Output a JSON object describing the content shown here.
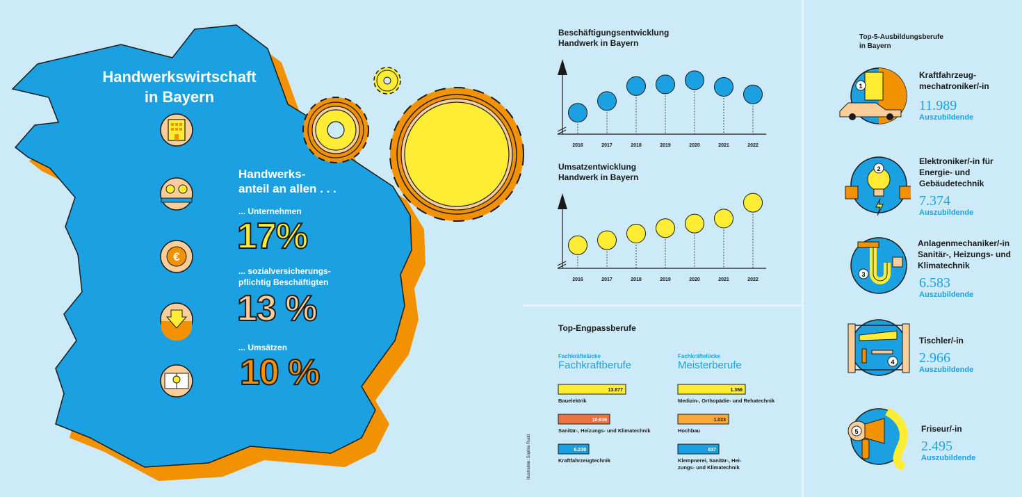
{
  "left": {
    "title_line1": "Handwerkswirtschaft",
    "title_line2": "in Bayern",
    "share_heading_line1": "Handwerks-",
    "share_heading_line2": "anteil an allen . . .",
    "shares": [
      {
        "label_line1": "... Unternehmen",
        "label_line2": "",
        "value": "17%",
        "color": "#ffed35"
      },
      {
        "label_line1": "... sozialversicherungs-",
        "label_line2": "pflichtig Beschäftigten",
        "value": "13 %",
        "color": "#fbcd99"
      },
      {
        "label_line1": "... Umsätzen",
        "label_line2": "",
        "value": "10 %",
        "color": "#f39200"
      }
    ]
  },
  "credit": "Illustration: Sophia Rudd",
  "colors": {
    "blue": "#1ba1e2",
    "orange": "#f39200",
    "yellow": "#ffed35",
    "peach": "#fbcd99",
    "red": "#ea7441",
    "background": "#cdeaf8"
  },
  "chart_data": [
    {
      "type": "line",
      "title_line1": "Beschäftigungsentwicklung",
      "title_line2": "Handwerk in Bayern",
      "x": [
        "2016",
        "2017",
        "2018",
        "2019",
        "2020",
        "2021",
        "2022"
      ],
      "relative_levels": [
        0.18,
        0.46,
        0.82,
        0.86,
        0.96,
        0.8,
        0.62
      ],
      "marker_color": "#1ba1e2"
    },
    {
      "type": "line",
      "title_line1": "Umsatzentwicklung",
      "title_line2": "Handwerk in Bayern",
      "x": [
        "2016",
        "2017",
        "2018",
        "2019",
        "2020",
        "2021",
        "2022"
      ],
      "relative_levels": [
        0.22,
        0.34,
        0.5,
        0.63,
        0.74,
        0.86,
        1.24
      ],
      "marker_color": "#ffed35"
    },
    {
      "type": "bar",
      "title": "Top-Engpassberufe",
      "groups": [
        {
          "caption_small": "Fachkräftelücke",
          "caption_big": "Fachkraftberufe",
          "bars": [
            {
              "label": "Bauelektrik",
              "value": 13877,
              "value_label": "13.877",
              "color": "#ffed35"
            },
            {
              "label": "Sanitär-, Heizungs- und Klimatechnik",
              "value": 10636,
              "value_label": "10.636",
              "color": "#ea7441"
            },
            {
              "label": "Kraftfahrzeugtechnik",
              "value": 6239,
              "value_label": "6.239",
              "color": "#1ba1e2"
            }
          ]
        },
        {
          "caption_small": "Fachkräftelücke",
          "caption_big": "Meisterberufe",
          "bars": [
            {
              "label": "Medizin-, Orthopädie- und Rehatechnik",
              "value": 1366,
              "value_label": "1.366",
              "color": "#ffed35"
            },
            {
              "label": "Hochbau",
              "value": 1023,
              "value_label": "1.023",
              "color": "#f9a93c"
            },
            {
              "label": "Klempnerei, Sanitär-, Heizungs- und Klimatechnik",
              "value": 837,
              "value_label": "837",
              "color": "#1ba1e2",
              "label_line1": "Klempnerei, Sanitär-, Hei-",
              "label_line2": "zungs- und Klimatechnik"
            }
          ]
        }
      ]
    },
    {
      "type": "table",
      "title_line1": "Top-5-Ausbildungsberufe",
      "title_line2": "in Bayern",
      "unit": "Auszubildende",
      "rows": [
        {
          "rank": "1",
          "name_lines": [
            "Kraftfahrzeug-",
            "mechatroniker/-in"
          ],
          "value": "11.989"
        },
        {
          "rank": "2",
          "name_lines": [
            "Elektroniker/-in für",
            "Energie- und",
            "Gebäudetechnik"
          ],
          "value": "7.374"
        },
        {
          "rank": "3",
          "name_lines": [
            "Anlagenmechaniker/-in",
            "Sanitär-, Heizungs- und",
            "Klimatechnik"
          ],
          "value": "6.583"
        },
        {
          "rank": "4",
          "name_lines": [
            "Tischler/-in"
          ],
          "value": "2.966"
        },
        {
          "rank": "5",
          "name_lines": [
            "Friseur/-in"
          ],
          "value": "2.495"
        }
      ]
    }
  ]
}
